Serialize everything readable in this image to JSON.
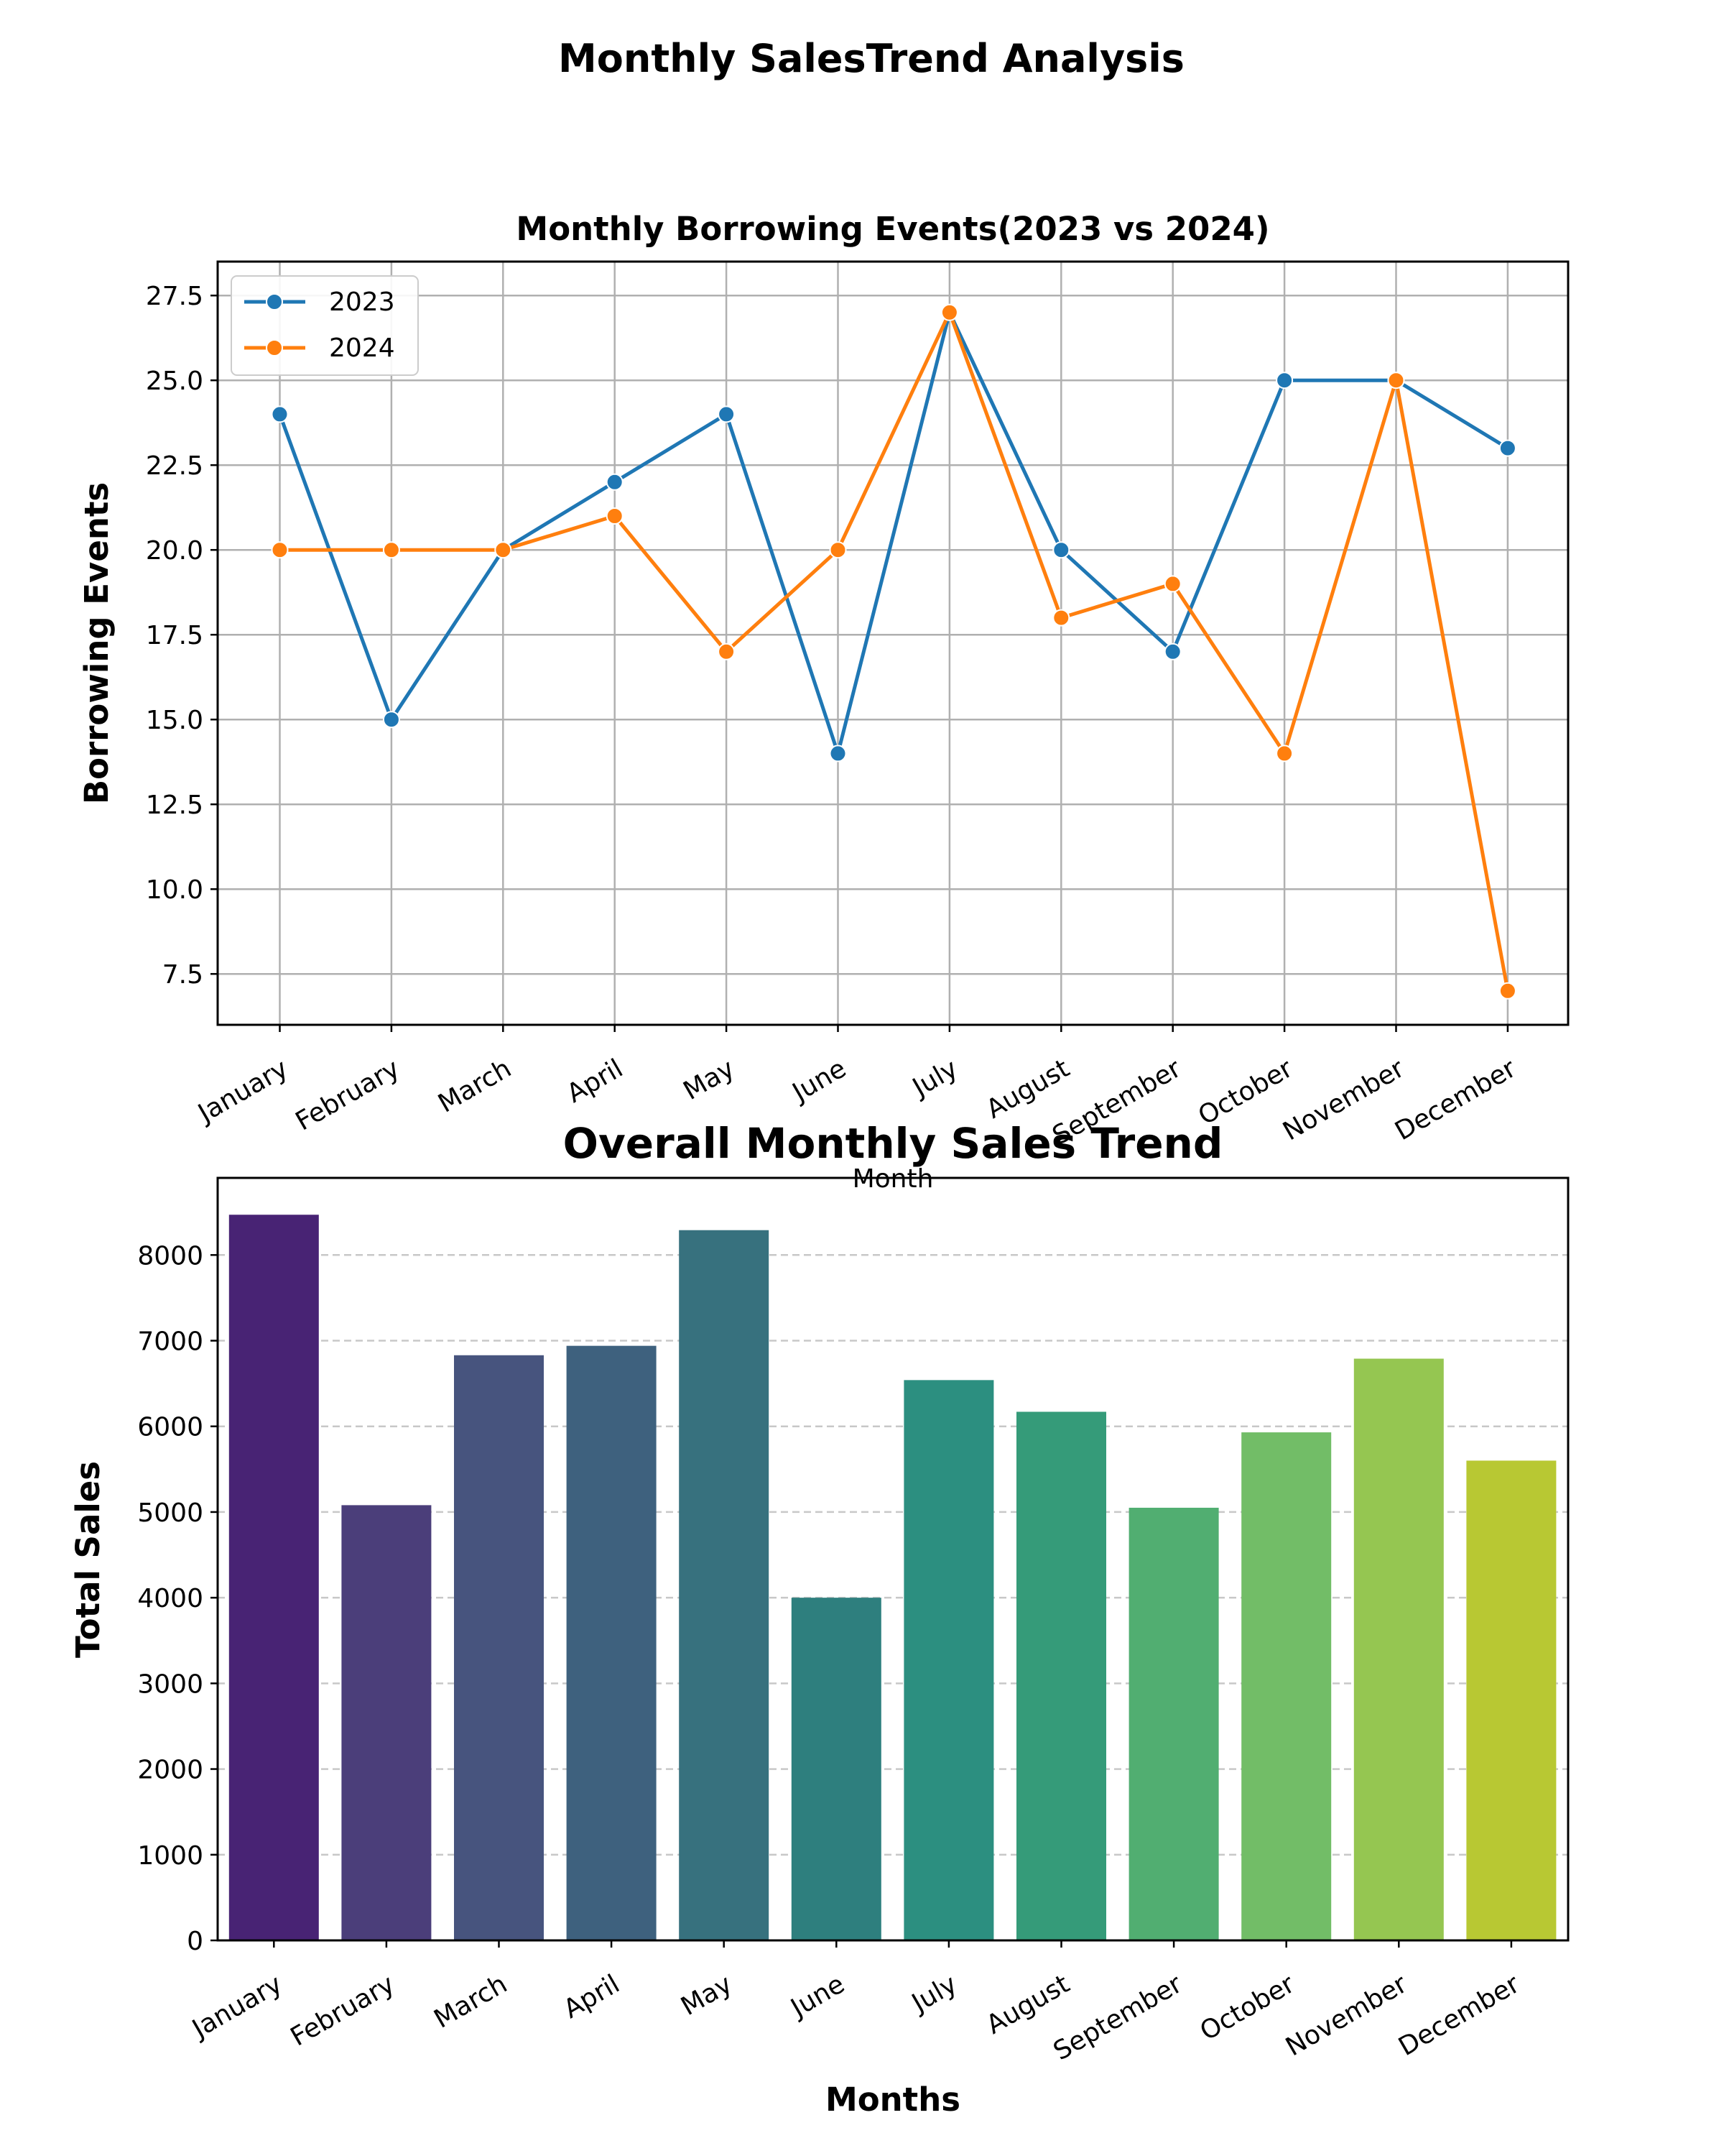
{
  "figure": {
    "suptitle": "Monthly SalesTrend Analysis"
  },
  "chart_data": [
    {
      "type": "line",
      "title": "Monthly Borrowing Events(2023 vs 2024)",
      "xlabel": "Month",
      "ylabel": "Borrowing Events",
      "categories": [
        "January",
        "February",
        "March",
        "April",
        "May",
        "June",
        "July",
        "August",
        "September",
        "October",
        "November",
        "December"
      ],
      "series": [
        {
          "name": "2023",
          "color": "#1f77b4",
          "values": [
            24,
            15,
            20,
            22,
            24,
            14,
            27,
            20,
            17,
            25,
            25,
            23
          ]
        },
        {
          "name": "2024",
          "color": "#ff7f0e",
          "values": [
            20,
            20,
            20,
            21,
            17,
            20,
            27,
            18,
            19,
            14,
            25,
            7
          ]
        }
      ],
      "ylim": [
        6,
        28.5
      ],
      "yticks": [
        "7.5",
        "10.0",
        "12.5",
        "15.0",
        "17.5",
        "20.0",
        "22.5",
        "25.0",
        "27.5"
      ],
      "grid": true,
      "legend_position": "upper left"
    },
    {
      "type": "bar",
      "title": "Overall Monthly Sales Trend",
      "xlabel": "Months",
      "ylabel": "Total Sales",
      "categories": [
        "January",
        "February",
        "March",
        "April",
        "May",
        "June",
        "July",
        "August",
        "September",
        "October",
        "November",
        "December"
      ],
      "values": [
        8470,
        5080,
        6830,
        6940,
        8290,
        4000,
        6540,
        6170,
        5050,
        5930,
        6790,
        5600
      ],
      "colors": [
        "#482374",
        "#4b3e7a",
        "#47547e",
        "#3e617e",
        "#37717e",
        "#2e7f7e",
        "#2c8f80",
        "#359b79",
        "#51ae71",
        "#72bd67",
        "#95c651",
        "#b8c833"
      ],
      "ylim": [
        0,
        8900
      ],
      "yticks": [
        "0",
        "1000",
        "2000",
        "3000",
        "4000",
        "5000",
        "6000",
        "7000",
        "8000"
      ],
      "grid": "y-dashed"
    }
  ]
}
